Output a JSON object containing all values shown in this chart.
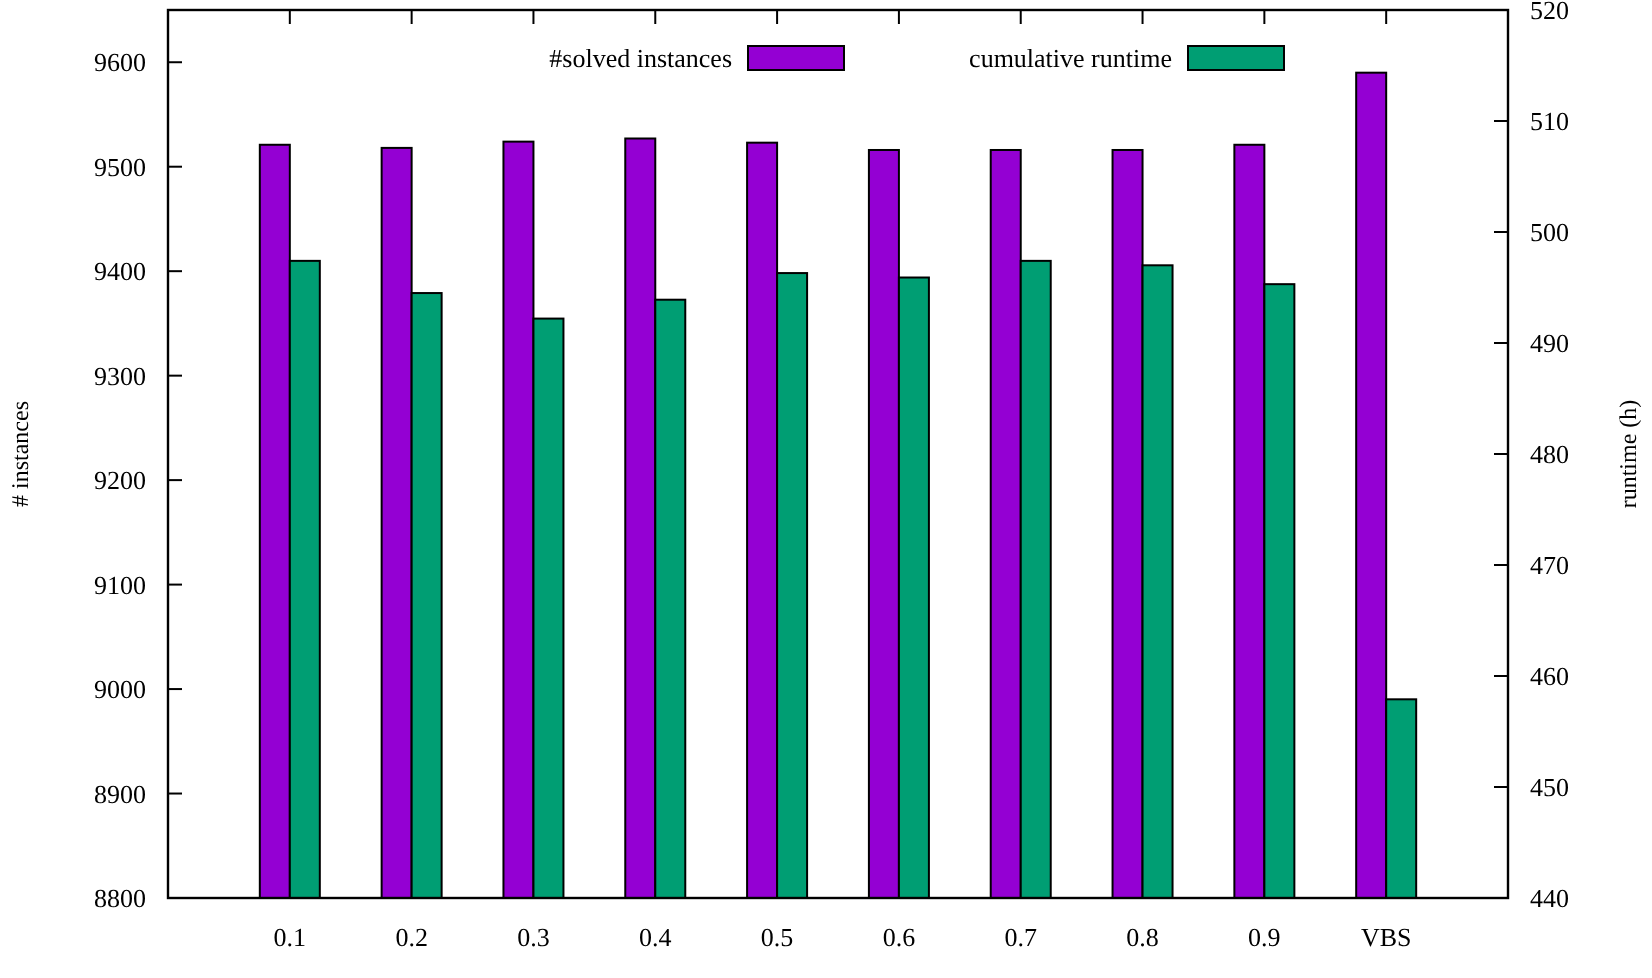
{
  "chart_data": {
    "type": "bar",
    "xlabel": null,
    "ylabel": "# instances",
    "y2label": "runtime (h)",
    "categories": [
      "0.1",
      "0.2",
      "0.3",
      "0.4",
      "0.5",
      "0.6",
      "0.7",
      "0.8",
      "0.9",
      "VBS"
    ],
    "series": [
      {
        "name": "#solved instances",
        "color": "#9400d3",
        "values": [
          9521,
          9518,
          9524,
          9527,
          9523,
          9516,
          9516,
          9516,
          9521,
          9590
        ]
      },
      {
        "name": "cumulative runtime",
        "color": "#009e73",
        "axis": "y2",
        "values": [
          497.4,
          494.5,
          492.2,
          493.9,
          496.3,
          495.9,
          497.4,
          497.0,
          495.3,
          457.9
        ]
      }
    ],
    "ylim": [
      8800,
      9650
    ],
    "yticks": [
      8800,
      8900,
      9000,
      9100,
      9200,
      9300,
      9400,
      9500,
      9600
    ],
    "y2lim": [
      440,
      520
    ],
    "y2ticks": [
      440,
      450,
      460,
      470,
      480,
      490,
      500,
      510,
      520
    ],
    "grid": false,
    "legend": "top"
  }
}
